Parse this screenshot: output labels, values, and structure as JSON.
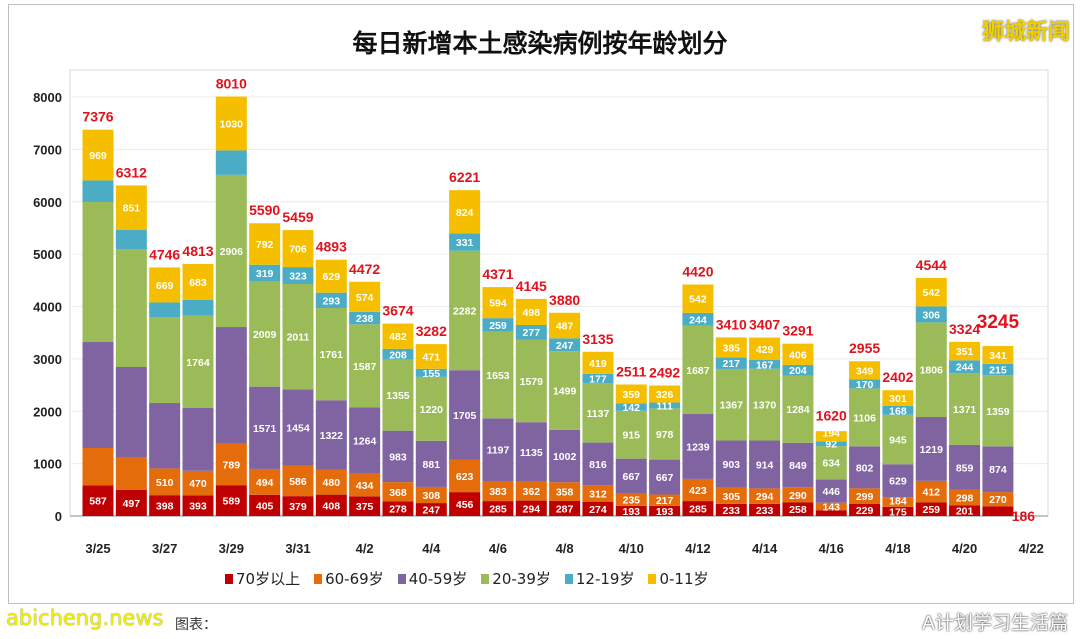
{
  "brand_watermark": "狮城新闻",
  "site_watermark": "abicheng.news",
  "wechat_watermark": "A计划学习生活篇",
  "source_label": "图表：",
  "chart_data": {
    "type": "bar",
    "stacked": true,
    "title": "每日新增本土感染病例按年龄划分",
    "xlabel": "",
    "ylabel": "",
    "ylim": [
      0,
      8000
    ],
    "yticks": [
      "0",
      "1000",
      "2000",
      "3000",
      "4000",
      "5000",
      "6000",
      "7000",
      "8000"
    ],
    "grid": true,
    "legend_position": "bottom",
    "categories": [
      "3/25",
      "3/26",
      "3/27",
      "3/28",
      "3/29",
      "3/30",
      "3/31",
      "4/1",
      "4/2",
      "4/3",
      "4/4",
      "4/5",
      "4/6",
      "4/7",
      "4/8",
      "4/9",
      "4/10",
      "4/11",
      "4/12",
      "4/13",
      "4/14",
      "4/15",
      "4/16",
      "4/17",
      "4/18",
      "4/19",
      "4/20",
      "4/21"
    ],
    "xtick_labels": [
      "3/25",
      "3/27",
      "3/29",
      "3/31",
      "4/2",
      "4/4",
      "4/6",
      "4/8",
      "4/10",
      "4/12",
      "4/14",
      "4/16",
      "4/18",
      "4/20",
      "4/22"
    ],
    "totals": [
      "7376",
      "6312",
      "4746",
      "4813",
      "8010",
      "5590",
      "5459",
      "4893",
      "4472",
      "3674",
      "3282",
      "6221",
      "4371",
      "4145",
      "3880",
      "3135",
      "2511",
      "2492",
      "4420",
      "3410",
      "3407",
      "3291",
      "1620",
      "2955",
      "2402",
      "4544",
      "3324",
      "3245"
    ],
    "series": [
      {
        "name": "70岁以上",
        "color": "#c00000",
        "values": [
          587,
          497,
          398,
          393,
          589,
          405,
          379,
          408,
          375,
          278,
          247,
          456,
          285,
          294,
          287,
          274,
          193,
          193,
          285,
          233,
          233,
          258,
          111,
          229,
          175,
          259,
          201,
          186
        ]
      },
      {
        "name": "60-69岁",
        "color": "#e46c0a",
        "values": [
          711,
          629,
          510,
          470,
          789,
          494,
          586,
          480,
          434,
          368,
          308,
          623,
          383,
          362,
          358,
          312,
          235,
          217,
          423,
          305,
          294,
          290,
          143,
          299,
          184,
          412,
          298,
          270
        ]
      },
      {
        "name": "40-59岁",
        "color": "#8064a2",
        "values": [
          2024,
          1719,
          1249,
          1199,
          2230,
          1571,
          1454,
          1322,
          1264,
          983,
          881,
          1705,
          1197,
          1135,
          1002,
          816,
          667,
          667,
          1239,
          903,
          914,
          849,
          446,
          802,
          629,
          1219,
          859,
          874
        ]
      },
      {
        "name": "20-39岁",
        "color": "#9bbb59",
        "values": [
          2673,
          2252,
          1642,
          1764,
          2906,
          2009,
          2011,
          1761,
          1587,
          1355,
          1220,
          2282,
          1653,
          1579,
          1499,
          1137,
          915,
          978,
          1687,
          1367,
          1370,
          1284,
          634,
          1106,
          945,
          1806,
          1371,
          1359
        ]
      },
      {
        "name": "12-19岁",
        "color": "#4bacc6",
        "values": [
          412,
          364,
          278,
          304,
          466,
          319,
          323,
          293,
          238,
          208,
          155,
          331,
          259,
          277,
          247,
          177,
          142,
          111,
          244,
          217,
          167,
          204,
          92,
          170,
          168,
          306,
          244,
          215
        ]
      },
      {
        "name": "0-11岁",
        "color": "#f5bf00",
        "values": [
          969,
          851,
          669,
          683,
          1030,
          792,
          706,
          629,
          574,
          482,
          471,
          824,
          594,
          498,
          487,
          419,
          359,
          326,
          542,
          385,
          429,
          406,
          194,
          349,
          301,
          542,
          351,
          341
        ]
      }
    ],
    "unlabeled_segments": [
      [
        0,
        1
      ],
      [
        0,
        2
      ],
      [
        0,
        3
      ],
      [
        0,
        4
      ],
      [
        1,
        1
      ],
      [
        1,
        2
      ],
      [
        1,
        3
      ],
      [
        1,
        4
      ],
      [
        2,
        2
      ],
      [
        2,
        3
      ],
      [
        2,
        4
      ],
      [
        3,
        2
      ],
      [
        3,
        4
      ],
      [
        4,
        2
      ],
      [
        4,
        4
      ],
      [
        22,
        0
      ]
    ]
  }
}
